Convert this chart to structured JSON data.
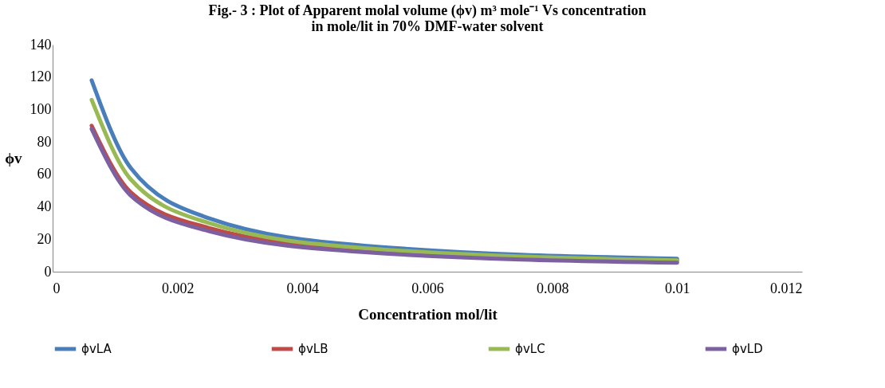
{
  "chart_data": {
    "type": "line",
    "title": [
      "Fig.- 3 : Plot of Apparent molal volume (ϕv) m³ mole⁻¹  Vs concentration",
      "in mole/lit in 70%  DMF-water solvent"
    ],
    "xlabel": "Concentration  mol/lit",
    "ylabel": "ϕv",
    "x": [
      0.000625,
      0.00125,
      0.0025,
      0.005,
      0.01
    ],
    "series": [
      {
        "name": "ϕvLA",
        "color": "#4a7ebb",
        "values": [
          118,
          64,
          33,
          16,
          8
        ]
      },
      {
        "name": "ϕvLB",
        "color": "#be4b48",
        "values": [
          90,
          49,
          27,
          13.5,
          6.6
        ]
      },
      {
        "name": "ϕvLC",
        "color": "#98b954",
        "values": [
          106,
          57,
          30,
          14.5,
          7
        ]
      },
      {
        "name": "ϕvLD",
        "color": "#7d60a0",
        "values": [
          88,
          47,
          25,
          12,
          5.5
        ]
      }
    ],
    "xlim": [
      0,
      0.012
    ],
    "xticks": [
      0,
      0.002,
      0.004,
      0.006,
      0.008,
      0.01,
      0.012
    ],
    "ylim": [
      0,
      140
    ],
    "yticks": [
      0,
      20,
      40,
      60,
      80,
      100,
      120,
      140
    ],
    "grid": false,
    "legend": "bottom",
    "marker": "none",
    "line_style": "solid"
  }
}
